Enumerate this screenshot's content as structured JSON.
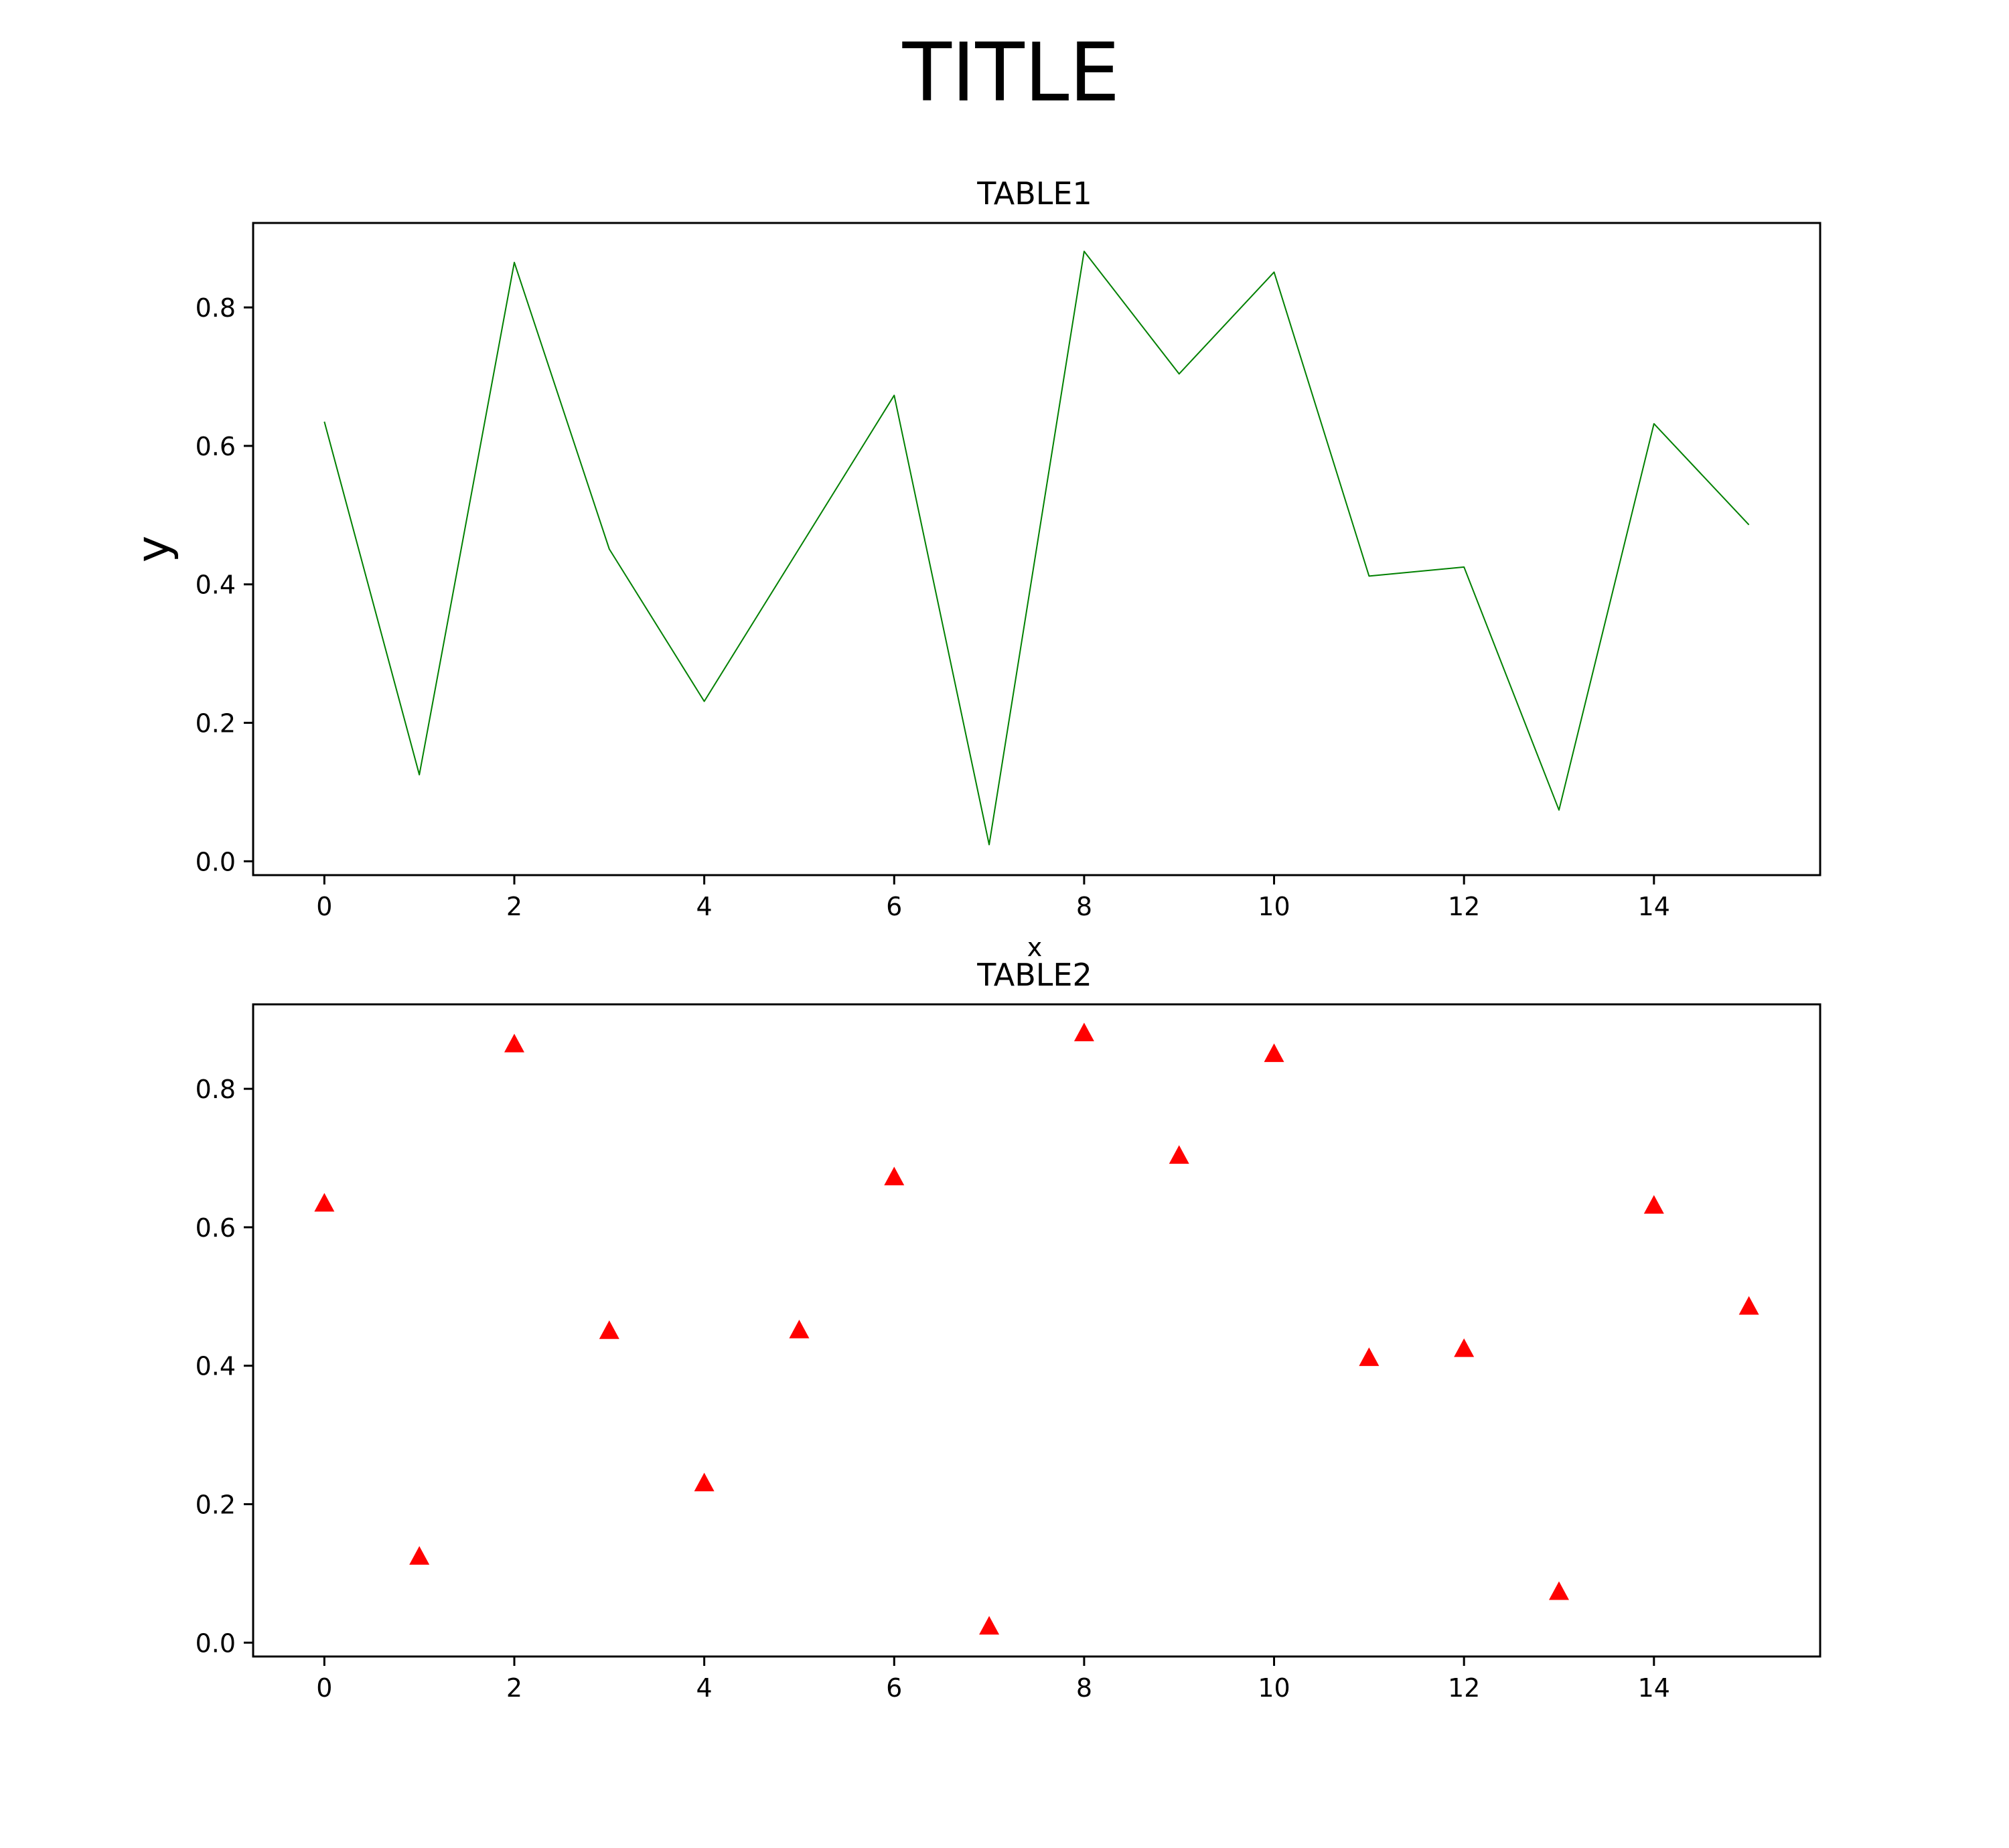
{
  "figure": {
    "title": "TITLE"
  },
  "chart_data": [
    {
      "type": "line",
      "title": "TABLE1",
      "xlabel": "x",
      "ylabel": "y",
      "color": "#008000",
      "x": [
        0,
        1,
        2,
        3,
        4,
        5,
        6,
        7,
        8,
        9,
        10,
        11,
        12,
        13,
        14,
        15
      ],
      "values": [
        0.635,
        0.125,
        0.865,
        0.451,
        0.231,
        0.452,
        0.673,
        0.024,
        0.881,
        0.704,
        0.851,
        0.412,
        0.425,
        0.074,
        0.632,
        0.486
      ],
      "xlim": [
        -0.75,
        15.75
      ],
      "ylim": [
        -0.02,
        0.922
      ],
      "xticks": [
        0,
        2,
        4,
        6,
        8,
        10,
        12,
        14
      ],
      "xtick_labels": [
        "0",
        "2",
        "4",
        "6",
        "8",
        "10",
        "12",
        "14"
      ],
      "yticks": [
        0.0,
        0.2,
        0.4,
        0.6,
        0.8
      ],
      "ytick_labels": [
        "0.0",
        "0.2",
        "0.4",
        "0.6",
        "0.8"
      ],
      "grid": false
    },
    {
      "type": "scatter",
      "title": "TABLE2",
      "xlabel": "",
      "ylabel": "",
      "color": "#ff0000",
      "marker": "triangle",
      "x": [
        0,
        1,
        2,
        3,
        4,
        5,
        6,
        7,
        8,
        9,
        10,
        11,
        12,
        13,
        14,
        15
      ],
      "values": [
        0.635,
        0.125,
        0.865,
        0.451,
        0.231,
        0.452,
        0.673,
        0.024,
        0.881,
        0.704,
        0.851,
        0.412,
        0.425,
        0.074,
        0.632,
        0.486
      ],
      "xlim": [
        -0.75,
        15.75
      ],
      "ylim": [
        -0.02,
        0.922
      ],
      "xticks": [
        0,
        2,
        4,
        6,
        8,
        10,
        12,
        14
      ],
      "xtick_labels": [
        "0",
        "2",
        "4",
        "6",
        "8",
        "10",
        "12",
        "14"
      ],
      "yticks": [
        0.0,
        0.2,
        0.4,
        0.6,
        0.8
      ],
      "ytick_labels": [
        "0.0",
        "0.2",
        "0.4",
        "0.6",
        "0.8"
      ],
      "grid": false
    }
  ]
}
